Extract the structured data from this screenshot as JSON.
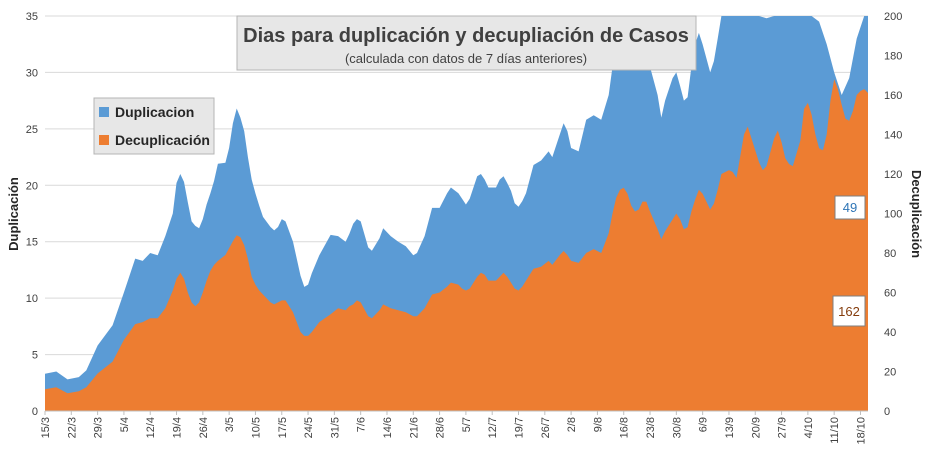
{
  "chart_data": {
    "type": "area",
    "title": "Dias para duplicación y decupliación de Casos",
    "subtitle": "(calculada con datos de 7 días anteriores)",
    "ylabel": "Duplicación",
    "y2label": "Decuplicación",
    "ylim": [
      0,
      35
    ],
    "y2lim": [
      0,
      200
    ],
    "yticks": [
      0,
      5,
      10,
      15,
      20,
      25,
      30,
      35
    ],
    "y2ticks": [
      0,
      20,
      40,
      60,
      80,
      100,
      120,
      140,
      160,
      180,
      200
    ],
    "x_tick_labels": [
      "15/3",
      "22/3",
      "29/3",
      "5/4",
      "12/4",
      "19/4",
      "26/4",
      "3/5",
      "10/5",
      "17/5",
      "24/5",
      "31/5",
      "7/6",
      "14/6",
      "21/6",
      "28/6",
      "5/7",
      "12/7",
      "19/7",
      "26/7",
      "2/8",
      "9/8",
      "16/8",
      "23/8",
      "30/8",
      "6/9",
      "13/9",
      "20/9",
      "27/9",
      "4/10",
      "11/10",
      "18/10"
    ],
    "grid": true,
    "legend_position": "top-left",
    "colors": {
      "duplicacion": "#5b9bd5",
      "decuplicacion": "#ed7d31"
    },
    "series": [
      {
        "name": "Duplicacion",
        "axis": "left",
        "color": "#5b9bd5",
        "keypoints": [
          [
            0,
            3.3
          ],
          [
            3,
            3.5
          ],
          [
            6,
            2.8
          ],
          [
            9,
            3.0
          ],
          [
            11,
            3.6
          ],
          [
            14,
            5.8
          ],
          [
            18,
            7.6
          ],
          [
            21,
            10.5
          ],
          [
            24,
            13.5
          ],
          [
            26,
            13.3
          ],
          [
            28,
            14.0
          ],
          [
            30,
            13.8
          ],
          [
            32,
            15.5
          ],
          [
            34,
            17.5
          ],
          [
            35,
            20.2
          ],
          [
            36,
            21.0
          ],
          [
            37,
            20.3
          ],
          [
            38,
            18.5
          ],
          [
            39,
            16.8
          ],
          [
            40,
            16.4
          ],
          [
            41,
            16.2
          ],
          [
            42,
            17.0
          ],
          [
            43,
            18.3
          ],
          [
            44,
            19.3
          ],
          [
            45,
            20.4
          ],
          [
            46,
            21.9
          ],
          [
            48,
            22.0
          ],
          [
            49,
            23.3
          ],
          [
            50,
            25.5
          ],
          [
            51,
            26.8
          ],
          [
            52,
            26.0
          ],
          [
            53,
            24.8
          ],
          [
            54,
            22.5
          ],
          [
            55,
            20.5
          ],
          [
            56,
            19.3
          ],
          [
            57,
            18.2
          ],
          [
            58,
            17.2
          ],
          [
            60,
            16.3
          ],
          [
            61,
            16.0
          ],
          [
            62,
            16.3
          ],
          [
            63,
            17.0
          ],
          [
            64,
            16.8
          ],
          [
            66,
            15.0
          ],
          [
            68,
            12.0
          ],
          [
            69,
            11.0
          ],
          [
            70,
            11.2
          ],
          [
            71,
            12.2
          ],
          [
            73,
            13.8
          ],
          [
            76,
            15.6
          ],
          [
            78,
            15.5
          ],
          [
            80,
            15.0
          ],
          [
            81,
            15.7
          ],
          [
            82,
            16.6
          ],
          [
            83,
            17.0
          ],
          [
            84,
            16.8
          ],
          [
            86,
            14.5
          ],
          [
            87,
            14.2
          ],
          [
            89,
            15.3
          ],
          [
            90,
            16.2
          ],
          [
            92,
            15.5
          ],
          [
            94,
            15.0
          ],
          [
            96,
            14.6
          ],
          [
            98,
            13.8
          ],
          [
            99,
            14.0
          ],
          [
            101,
            15.5
          ],
          [
            103,
            18.0
          ],
          [
            105,
            18.0
          ],
          [
            107,
            19.3
          ],
          [
            108,
            19.8
          ],
          [
            110,
            19.3
          ],
          [
            111,
            18.8
          ],
          [
            112,
            18.3
          ],
          [
            113,
            18.8
          ],
          [
            115,
            20.8
          ],
          [
            116,
            21.0
          ],
          [
            117,
            20.5
          ],
          [
            118,
            19.8
          ],
          [
            120,
            19.8
          ],
          [
            121,
            20.5
          ],
          [
            122,
            20.8
          ],
          [
            123,
            20.2
          ],
          [
            124,
            19.5
          ],
          [
            125,
            18.4
          ],
          [
            126,
            18.1
          ],
          [
            127,
            18.6
          ],
          [
            128,
            19.3
          ],
          [
            130,
            21.8
          ],
          [
            132,
            22.2
          ],
          [
            134,
            23.0
          ],
          [
            135,
            22.5
          ],
          [
            137,
            24.5
          ],
          [
            138,
            25.5
          ],
          [
            139,
            24.8
          ],
          [
            140,
            23.3
          ],
          [
            142,
            23.0
          ],
          [
            144,
            25.8
          ],
          [
            146,
            26.2
          ],
          [
            148,
            25.8
          ],
          [
            150,
            28.0
          ],
          [
            151,
            30.5
          ],
          [
            152,
            32.5
          ],
          [
            153,
            34.0
          ],
          [
            154,
            34.5
          ],
          [
            155,
            33.5
          ],
          [
            156,
            32.0
          ],
          [
            157,
            30.5
          ],
          [
            158,
            30.5
          ],
          [
            159,
            32.0
          ],
          [
            160,
            32.0
          ],
          [
            161,
            30.5
          ],
          [
            163,
            28.0
          ],
          [
            164,
            26.0
          ],
          [
            165,
            27.5
          ],
          [
            167,
            29.5
          ],
          [
            168,
            30.0
          ],
          [
            169,
            28.8
          ],
          [
            170,
            27.5
          ],
          [
            171,
            27.8
          ],
          [
            172,
            30.5
          ],
          [
            173,
            32.5
          ],
          [
            174,
            33.5
          ],
          [
            175,
            32.5
          ],
          [
            177,
            30.0
          ],
          [
            178,
            31.0
          ],
          [
            179,
            33.0
          ],
          [
            180,
            35.5
          ],
          [
            184,
            36.0
          ],
          [
            189,
            36.0
          ],
          [
            190,
            35.8
          ],
          [
            192,
            34.8
          ],
          [
            194,
            35.5
          ],
          [
            197,
            35.0
          ],
          [
            200,
            35.5
          ],
          [
            201,
            36.0
          ],
          [
            204,
            36.0
          ],
          [
            206,
            34.5
          ],
          [
            208,
            32.5
          ],
          [
            210,
            30.0
          ],
          [
            212,
            28.0
          ],
          [
            214,
            29.5
          ],
          [
            216,
            33.0
          ],
          [
            218,
            36.0
          ],
          [
            219,
            36.0
          ]
        ]
      },
      {
        "name": "Decuplicación",
        "axis": "right",
        "color": "#ed7d31",
        "keypoints": [
          [
            0,
            11
          ],
          [
            3,
            12
          ],
          [
            6,
            9
          ],
          [
            9,
            10
          ],
          [
            11,
            12
          ],
          [
            14,
            19
          ],
          [
            18,
            25
          ],
          [
            21,
            36
          ],
          [
            24,
            44
          ],
          [
            26,
            45
          ],
          [
            28,
            47
          ],
          [
            30,
            47
          ],
          [
            32,
            52
          ],
          [
            34,
            61
          ],
          [
            35,
            67
          ],
          [
            36,
            70
          ],
          [
            37,
            67
          ],
          [
            38,
            60
          ],
          [
            39,
            55
          ],
          [
            40,
            53
          ],
          [
            41,
            55
          ],
          [
            42,
            60
          ],
          [
            43,
            66
          ],
          [
            44,
            71
          ],
          [
            45,
            74
          ],
          [
            46,
            76
          ],
          [
            48,
            79
          ],
          [
            50,
            86
          ],
          [
            51,
            89
          ],
          [
            52,
            88
          ],
          [
            53,
            84
          ],
          [
            54,
            77
          ],
          [
            55,
            68
          ],
          [
            56,
            64
          ],
          [
            57,
            61
          ],
          [
            58,
            59
          ],
          [
            60,
            55
          ],
          [
            61,
            54
          ],
          [
            62,
            55
          ],
          [
            63,
            56
          ],
          [
            64,
            56
          ],
          [
            66,
            50
          ],
          [
            68,
            40
          ],
          [
            69,
            38
          ],
          [
            70,
            38
          ],
          [
            71,
            40
          ],
          [
            73,
            45
          ],
          [
            76,
            49
          ],
          [
            78,
            52
          ],
          [
            80,
            51
          ],
          [
            81,
            53
          ],
          [
            82,
            54
          ],
          [
            83,
            56
          ],
          [
            84,
            55
          ],
          [
            86,
            48
          ],
          [
            87,
            47
          ],
          [
            89,
            51
          ],
          [
            90,
            54
          ],
          [
            92,
            52
          ],
          [
            94,
            51
          ],
          [
            96,
            50
          ],
          [
            98,
            48
          ],
          [
            99,
            48
          ],
          [
            101,
            52
          ],
          [
            103,
            59
          ],
          [
            105,
            60
          ],
          [
            107,
            63
          ],
          [
            108,
            65
          ],
          [
            110,
            64
          ],
          [
            111,
            62
          ],
          [
            112,
            61
          ],
          [
            113,
            62
          ],
          [
            115,
            68
          ],
          [
            116,
            70
          ],
          [
            117,
            69
          ],
          [
            118,
            66
          ],
          [
            120,
            66
          ],
          [
            121,
            68
          ],
          [
            122,
            70
          ],
          [
            123,
            68
          ],
          [
            124,
            65
          ],
          [
            125,
            62
          ],
          [
            126,
            61
          ],
          [
            127,
            63
          ],
          [
            128,
            66
          ],
          [
            130,
            72
          ],
          [
            132,
            73
          ],
          [
            134,
            76
          ],
          [
            135,
            74
          ],
          [
            137,
            79
          ],
          [
            138,
            81
          ],
          [
            139,
            79
          ],
          [
            140,
            76
          ],
          [
            142,
            75
          ],
          [
            144,
            80
          ],
          [
            146,
            82
          ],
          [
            148,
            80
          ],
          [
            150,
            90
          ],
          [
            151,
            100
          ],
          [
            152,
            108
          ],
          [
            153,
            112
          ],
          [
            154,
            113
          ],
          [
            155,
            110
          ],
          [
            156,
            104
          ],
          [
            157,
            101
          ],
          [
            158,
            102
          ],
          [
            159,
            106
          ],
          [
            160,
            106
          ],
          [
            161,
            101
          ],
          [
            163,
            92
          ],
          [
            164,
            87
          ],
          [
            165,
            91
          ],
          [
            167,
            97
          ],
          [
            168,
            100
          ],
          [
            169,
            97
          ],
          [
            170,
            92
          ],
          [
            171,
            93
          ],
          [
            172,
            101
          ],
          [
            173,
            107
          ],
          [
            174,
            112
          ],
          [
            175,
            110
          ],
          [
            177,
            102
          ],
          [
            178,
            105
          ],
          [
            179,
            112
          ],
          [
            180,
            120
          ],
          [
            182,
            122
          ],
          [
            183,
            121
          ],
          [
            184,
            118
          ],
          [
            186,
            140
          ],
          [
            187,
            144
          ],
          [
            188,
            138
          ],
          [
            190,
            126
          ],
          [
            191,
            122
          ],
          [
            192,
            124
          ],
          [
            194,
            138
          ],
          [
            195,
            142
          ],
          [
            196,
            136
          ],
          [
            197,
            128
          ],
          [
            198,
            125
          ],
          [
            199,
            124
          ],
          [
            201,
            137
          ],
          [
            202,
            153
          ],
          [
            203,
            156
          ],
          [
            204,
            150
          ],
          [
            205,
            140
          ],
          [
            206,
            133
          ],
          [
            207,
            132
          ],
          [
            208,
            140
          ],
          [
            209,
            157
          ],
          [
            210,
            168
          ],
          [
            211,
            163
          ],
          [
            212,
            155
          ],
          [
            213,
            148
          ],
          [
            214,
            147
          ],
          [
            215,
            152
          ],
          [
            216,
            160
          ],
          [
            217,
            162
          ],
          [
            218,
            163
          ],
          [
            219,
            161
          ]
        ]
      }
    ],
    "callouts": [
      {
        "series": "Duplicacion",
        "label": "49",
        "color": "#2e75b6"
      },
      {
        "series": "Decuplicación",
        "label": "162",
        "color": "#843c0c"
      }
    ]
  }
}
